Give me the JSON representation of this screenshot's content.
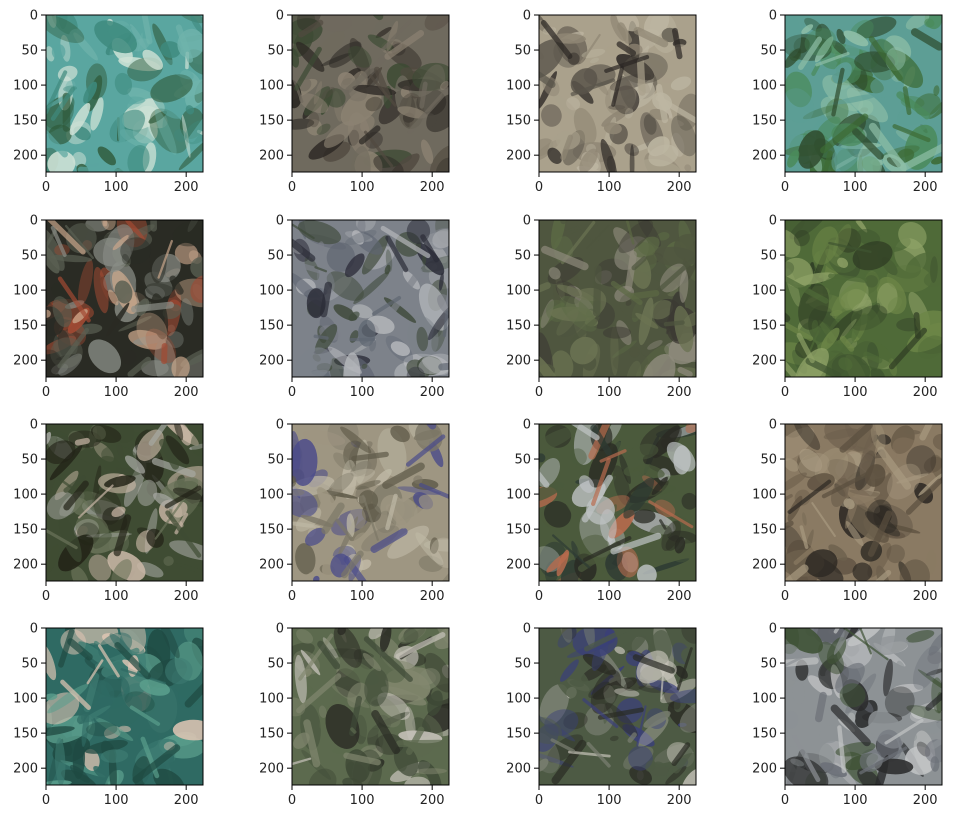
{
  "chart_data": {
    "type": "image_grid",
    "rows": 4,
    "cols": 4,
    "image_size": [
      224,
      224
    ],
    "xlim": [
      0,
      224
    ],
    "ylim": [
      224,
      0
    ],
    "x_ticks": [
      0,
      100,
      200
    ],
    "y_ticks": [
      0,
      50,
      100,
      150,
      200
    ],
    "x_tick_labels": [
      "0",
      "100",
      "200"
    ],
    "y_tick_labels": [
      "0",
      "50",
      "100",
      "150",
      "200"
    ],
    "grid": false,
    "panels": [
      {
        "id": "r1c1",
        "palette": [
          "#5aa6a0",
          "#6fb3ab",
          "#3e8a7e",
          "#cfe2d6",
          "#2f5a3a"
        ]
      },
      {
        "id": "r1c2",
        "palette": [
          "#6f6a5e",
          "#514a40",
          "#3c4a33",
          "#8c8272",
          "#2a2622"
        ]
      },
      {
        "id": "r1c3",
        "palette": [
          "#aaa18c",
          "#8f8674",
          "#2b2724",
          "#bdb6a2",
          "#59544a"
        ]
      },
      {
        "id": "r1c4",
        "palette": [
          "#5d9e95",
          "#4a8a5a",
          "#3d6b35",
          "#8fbfa7",
          "#2e4a2c"
        ]
      },
      {
        "id": "r2c1",
        "palette": [
          "#2a2b24",
          "#5a5f52",
          "#8b8f88",
          "#c8a58a",
          "#a24a33"
        ]
      },
      {
        "id": "r2c2",
        "palette": [
          "#7d828a",
          "#3f4a3b",
          "#b5b7bb",
          "#5f6672",
          "#2b2c38"
        ]
      },
      {
        "id": "r2c3",
        "palette": [
          "#4f563f",
          "#6b7352",
          "#3c3a33",
          "#8e8a7c",
          "#5c6a45"
        ]
      },
      {
        "id": "r2c4",
        "palette": [
          "#4f6a38",
          "#6d8647",
          "#2f3c24",
          "#8ea166",
          "#3f5430"
        ]
      },
      {
        "id": "r3c1",
        "palette": [
          "#3f4c33",
          "#232418",
          "#6b745a",
          "#c9b7a6",
          "#a7a9a3"
        ]
      },
      {
        "id": "r3c2",
        "palette": [
          "#9e9682",
          "#7c7766",
          "#bfb9a6",
          "#5d5847",
          "#4a4b8a"
        ]
      },
      {
        "id": "r3c3",
        "palette": [
          "#4b5a3c",
          "#2a2b24",
          "#c0c4c6",
          "#b86b4e",
          "#2d3a33"
        ]
      },
      {
        "id": "r3c4",
        "palette": [
          "#8a7a63",
          "#6d604d",
          "#a89a80",
          "#2e2a24",
          "#5a4e3e"
        ]
      },
      {
        "id": "r4c1",
        "palette": [
          "#2f6a63",
          "#3e7c72",
          "#1f4a42",
          "#e2c7b5",
          "#5a9e8c"
        ]
      },
      {
        "id": "r4c2",
        "palette": [
          "#5c6a4e",
          "#3f4a37",
          "#c7c3bb",
          "#82876f",
          "#2a2b24"
        ]
      },
      {
        "id": "r4c3",
        "palette": [
          "#4d5a44",
          "#7a7f72",
          "#c6c3b9",
          "#2a2b24",
          "#3a3f7a"
        ]
      },
      {
        "id": "r4c4",
        "palette": [
          "#8d9295",
          "#6c7078",
          "#3f5236",
          "#2a2b2c",
          "#c2c4c5"
        ]
      }
    ]
  }
}
